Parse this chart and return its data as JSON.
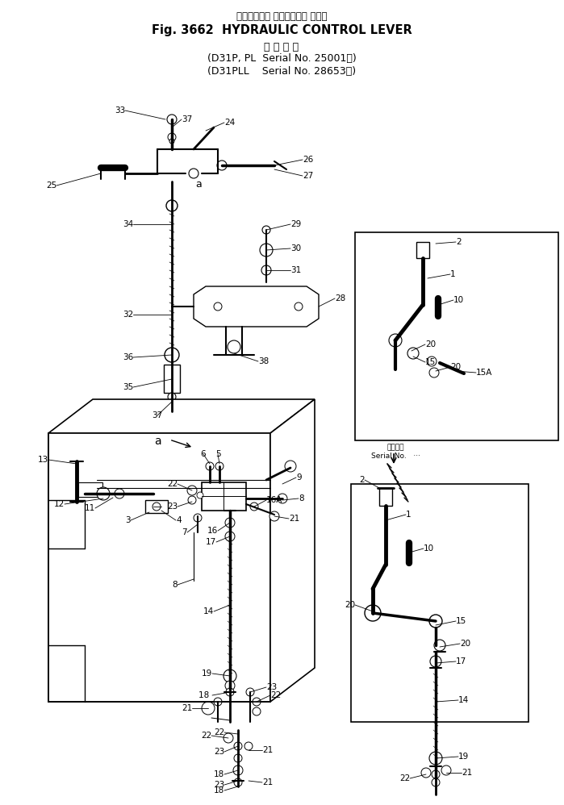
{
  "title_jp": "ハイドロリッ コントロール レバー",
  "title_en": "Fig. 3662  HYDRAULIC CONTROL LEVER",
  "subtitle_jp": "適 用 号 機",
  "subtitle_line1": "(D31P, PL  Serial No. 25001～)",
  "subtitle_line2": "(D31PLL    Serial No. 28653～)",
  "bg_color": "#ffffff",
  "lc": "#000000",
  "tc": "#000000",
  "fig_width": 6.99,
  "fig_height": 9.98,
  "dpi": 100
}
